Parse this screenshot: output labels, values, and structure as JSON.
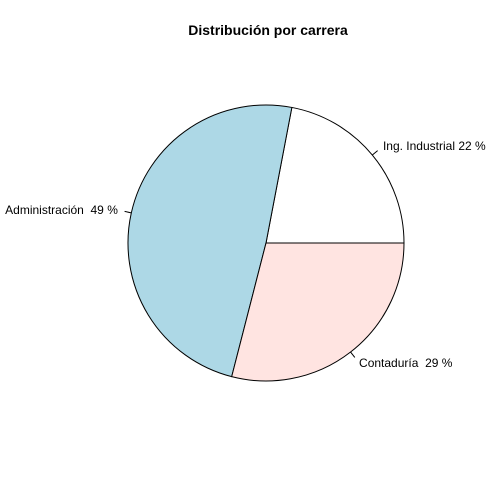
{
  "chart_data": {
    "type": "pie",
    "title": "Distribución por carrera",
    "slices": [
      {
        "label": "Ing. Industrial 22 %",
        "category": "Ing. Industrial",
        "value": 22,
        "color": "#ffffff"
      },
      {
        "label": "Administración  49 %",
        "category": "Administración",
        "value": 49,
        "color": "#add8e6"
      },
      {
        "label": "Contaduría  29 %",
        "category": "Contaduría",
        "value": 29,
        "color": "#ffe4e1"
      }
    ],
    "start_angle_deg": 0,
    "direction": "counterclockwise",
    "legend": "none"
  }
}
